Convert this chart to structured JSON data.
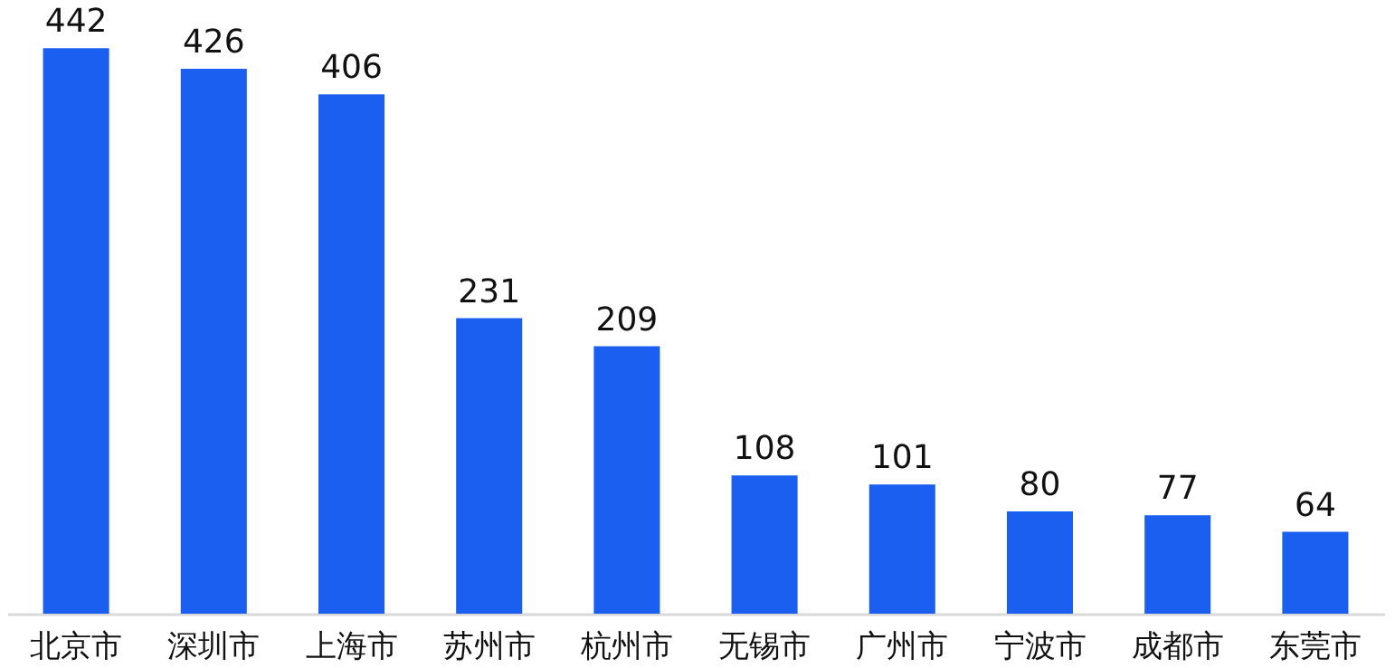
{
  "chart_data": {
    "type": "bar",
    "categories": [
      "北京市",
      "深圳市",
      "上海市",
      "苏州市",
      "杭州市",
      "无锡市",
      "广州市",
      "宁波市",
      "成都市",
      "东莞市"
    ],
    "values": [
      442,
      426,
      406,
      231,
      209,
      108,
      101,
      80,
      77,
      64
    ],
    "color": "#1a5ff0",
    "tick_labels": "x",
    "data_labels": true
  }
}
